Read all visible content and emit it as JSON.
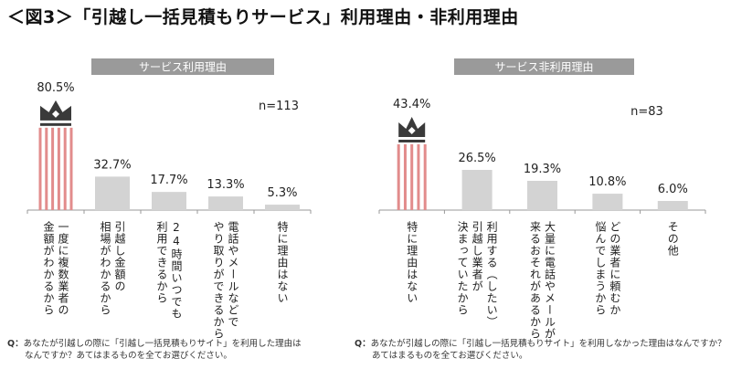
{
  "title": "＜図3＞「引越し一括見積もりサービス」利用理由・非利用理由",
  "chart_data": [
    {
      "type": "bar",
      "title": "サービス利用理由",
      "n_label": "n=113",
      "unit": "%",
      "categories": [
        "一度に複数業者の金額がわかるから",
        "引越し金額の相場がわかるから",
        "24時間いつでも利用できるから",
        "電話やメールなどでやり取りができるから",
        "特に理由はない"
      ],
      "category_lines": [
        [
          "一度に複数業者の",
          "金額がわかるから"
        ],
        [
          "引越し金額の",
          "相場がわかるから"
        ],
        [
          "24時間いつでも",
          "利用できるから"
        ],
        [
          "電話やメールなどで",
          "やり取りができるから"
        ],
        [
          "特に理由はない"
        ]
      ],
      "values": [
        80.5,
        32.7,
        17.7,
        13.3,
        5.3
      ],
      "value_labels": [
        "80.5%",
        "32.7%",
        "17.7%",
        "13.3%",
        "5.3%"
      ],
      "highlight_index": 0,
      "highlight_icon": "crown-icon",
      "colors": {
        "highlight": "#e28c8c",
        "bar": "#d3d3d3",
        "header_bg": "#9a9a9a",
        "header_text": "#ffffff",
        "crown": "#3a3a3a"
      },
      "question": {
        "prefix": "Q：",
        "lines": [
          "あなたが引越しの際に「引越し一括見積もりサイト」を利用した理由は",
          "なんですか？あてはまるものを全てお選びください。"
        ]
      }
    },
    {
      "type": "bar",
      "title": "サービス非利用理由",
      "n_label": "n=83",
      "unit": "%",
      "categories": [
        "特に理由はない",
        "利用する（したい）引越し業者が決まっていたから",
        "大量に電話やメールが来るおそれがあるから",
        "どの業者に頼むか悩んでしまうから",
        "その他"
      ],
      "category_lines": [
        [
          "特に理由はない"
        ],
        [
          "利用する（したい）",
          "引越し業者が",
          "決まっていたから"
        ],
        [
          "大量に電話やメールが",
          "来るおそれがあるから"
        ],
        [
          "どの業者に頼むか",
          "悩んでしまうから"
        ],
        [
          "その他"
        ]
      ],
      "values": [
        43.4,
        26.5,
        19.3,
        10.8,
        6.0
      ],
      "value_labels": [
        "43.4%",
        "26.5%",
        "19.3%",
        "10.8%",
        "6.0%"
      ],
      "highlight_index": 0,
      "highlight_icon": "crown-icon",
      "colors": {
        "highlight": "#e28c8c",
        "bar": "#d3d3d3",
        "header_bg": "#9a9a9a",
        "header_text": "#ffffff",
        "crown": "#3a3a3a"
      },
      "question": {
        "prefix": "Q：",
        "lines": [
          "あなたが引越しの際に「引越し一括見積もりサイト」を利用しなかった理由はなんですか？",
          "あてはまるものを全てお選びください。"
        ]
      }
    }
  ]
}
